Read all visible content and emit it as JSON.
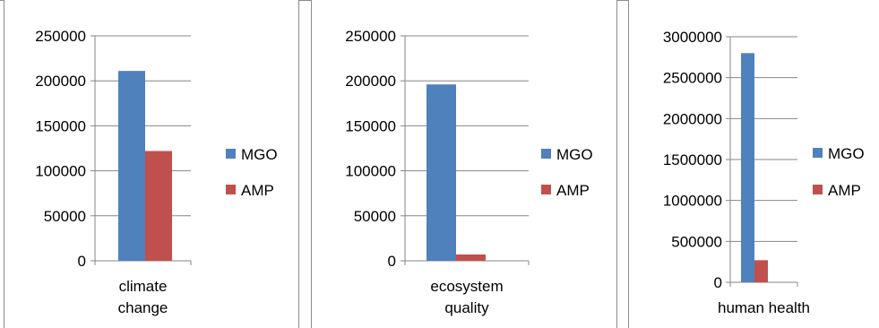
{
  "colors": {
    "MGO": "#4f81bd",
    "AMP": "#c0504d",
    "grid": "#868686",
    "axis": "#868686"
  },
  "chart_data": [
    {
      "type": "bar",
      "categories": [
        "climate change"
      ],
      "category_lines": [
        "climate",
        "change"
      ],
      "series": [
        {
          "name": "MGO",
          "values": [
            211000
          ]
        },
        {
          "name": "AMP",
          "values": [
            122000
          ]
        }
      ],
      "ylim": [
        0,
        250000
      ],
      "yticks": [
        0,
        50000,
        100000,
        150000,
        200000,
        250000
      ],
      "ytick_labels": [
        "0",
        "50000",
        "100000",
        "150000",
        "200000",
        "250000"
      ],
      "grid": true,
      "legend": "right"
    },
    {
      "type": "bar",
      "categories": [
        "ecosystem quality"
      ],
      "category_lines": [
        "ecosystem",
        "quality"
      ],
      "series": [
        {
          "name": "MGO",
          "values": [
            196000
          ]
        },
        {
          "name": "AMP",
          "values": [
            7000
          ]
        }
      ],
      "ylim": [
        0,
        250000
      ],
      "yticks": [
        0,
        50000,
        100000,
        150000,
        200000,
        250000
      ],
      "ytick_labels": [
        "0",
        "50000",
        "100000",
        "150000",
        "200000",
        "250000"
      ],
      "grid": true,
      "legend": "right"
    },
    {
      "type": "bar",
      "categories": [
        "human health"
      ],
      "category_lines": [
        "human health"
      ],
      "series": [
        {
          "name": "MGO",
          "values": [
            2800000
          ]
        },
        {
          "name": "AMP",
          "values": [
            270000
          ]
        }
      ],
      "ylim": [
        0,
        3000000
      ],
      "yticks": [
        0,
        500000,
        1000000,
        1500000,
        2000000,
        2500000,
        3000000
      ],
      "ytick_labels": [
        "0",
        "500000",
        "1000000",
        "1500000",
        "2000000",
        "2500000",
        "3000000"
      ],
      "grid": true,
      "legend": "right"
    }
  ]
}
